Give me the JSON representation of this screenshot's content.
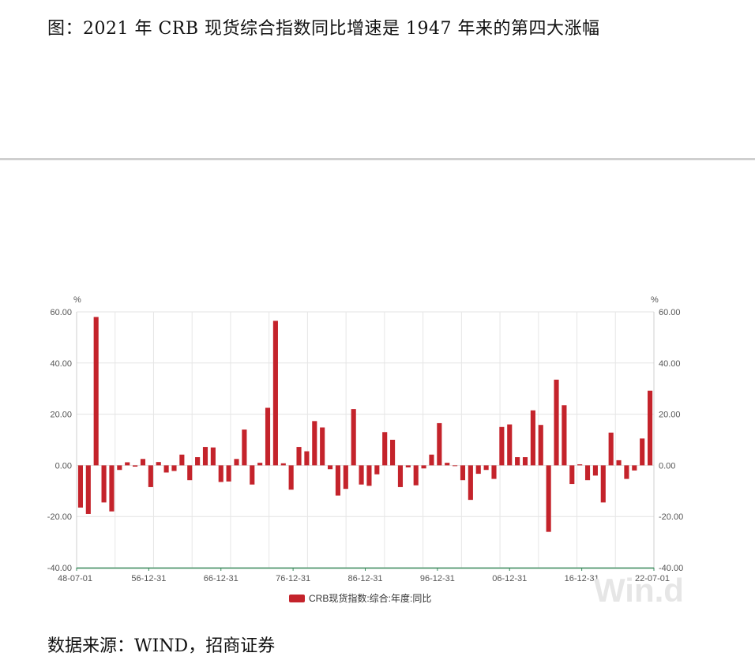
{
  "title": "图：2021 年 CRB 现货综合指数同比增速是 1947 年来的第四大涨幅",
  "source": "数据来源：WIND，招商证券",
  "watermark": "Win.d",
  "chart_data": {
    "type": "bar",
    "series": [
      {
        "name": "CRB现货指数:综合:年度:同比",
        "color": "#c4232b",
        "values": [
          -16.5,
          -19.0,
          58.0,
          -14.5,
          -18.0,
          -1.8,
          1.2,
          -0.5,
          2.5,
          -8.5,
          1.3,
          -2.8,
          -2.2,
          4.2,
          -5.8,
          3.2,
          7.2,
          7.0,
          -6.5,
          -6.3,
          2.5,
          14.0,
          -7.5,
          1.0,
          22.5,
          56.5,
          0.8,
          -9.5,
          7.2,
          5.5,
          17.3,
          14.8,
          -1.5,
          -11.8,
          -9.2,
          22.0,
          -7.5,
          -8.0,
          -3.5,
          13.0,
          10.0,
          -8.5,
          -0.8,
          -7.8,
          -1.2,
          4.2,
          16.5,
          1.0,
          -0.3,
          -5.8,
          -13.5,
          -3.3,
          -1.8,
          -5.3,
          15.0,
          16.0,
          3.2,
          3.2,
          21.5,
          15.8,
          -26.0,
          33.5,
          23.5,
          -7.3,
          0.4,
          -5.8,
          -4.0,
          -14.5,
          12.8,
          2.0,
          -5.3,
          -2.0,
          10.5,
          29.2
        ]
      }
    ],
    "x_tick_labels": [
      "48-07-01",
      "56-12-31",
      "66-12-31",
      "76-12-31",
      "86-12-31",
      "96-12-31",
      "06-12-31",
      "16-12-31",
      "22-07-01"
    ],
    "y_ticks": [
      "60.00",
      "40.00",
      "20.00",
      "0.00",
      "-20.00",
      "-40.00"
    ],
    "y_unit": "%",
    "ylim": [
      -40,
      60
    ],
    "grid": true,
    "legend_position": "bottom-center"
  }
}
